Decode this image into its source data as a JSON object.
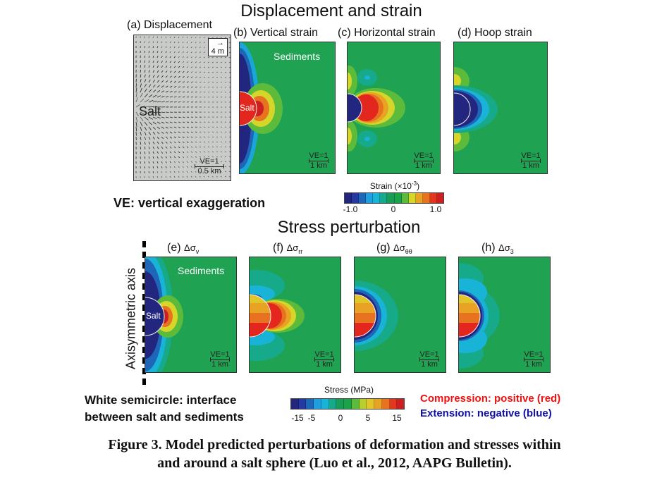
{
  "strain_section": {
    "title": "Displacement and strain",
    "panels": [
      {
        "id": "a",
        "label": "(a) Displacement",
        "region_label": "Salt",
        "arrow_scale": "4 m",
        "ve": "VE=1",
        "scale": "0.5 km"
      },
      {
        "id": "b",
        "label": "(b) Vertical strain",
        "region_label": "Sediments",
        "salt_label": "Salt",
        "ve": "VE=1",
        "scale": "1 km"
      },
      {
        "id": "c",
        "label": "(c) Horizontal strain",
        "ve": "VE=1",
        "scale": "1 km"
      },
      {
        "id": "d",
        "label": "(d) Hoop strain",
        "ve": "VE=1",
        "scale": "1 km"
      }
    ],
    "colorbar": {
      "title": "Strain (×10",
      "title_exp": "-3",
      "title_end": ")",
      "ticks": [
        "-1.0",
        "0",
        "1.0"
      ],
      "colors": [
        "#23267e",
        "#253aa0",
        "#1e66b8",
        "#1f9ee0",
        "#1ab3d8",
        "#16a98a",
        "#179d55",
        "#1ca34a",
        "#5cbb3a",
        "#d6d62a",
        "#e9a324",
        "#e7721f",
        "#e3361e",
        "#cc1f22"
      ]
    },
    "ve_note": "VE: vertical exaggeration"
  },
  "stress_section": {
    "title": "Stress perturbation",
    "axis_label": "Axisymmetric axis",
    "panels": [
      {
        "id": "e",
        "prefix": "(e)",
        "sym": "Δσ",
        "sub": "v",
        "region_label": "Sediments",
        "salt_label": "Salt",
        "ve": "VE=1",
        "scale": "1 km"
      },
      {
        "id": "f",
        "prefix": "(f)",
        "sym": "Δσ",
        "sub": "rr",
        "ve": "VE=1",
        "scale": "1 km"
      },
      {
        "id": "g",
        "prefix": "(g)",
        "sym": "Δσ",
        "sub": "θθ",
        "ve": "VE=1",
        "scale": "1 km"
      },
      {
        "id": "h",
        "prefix": "(h)",
        "sym": "Δσ",
        "sub": "3",
        "ve": "VE=1",
        "scale": "1 km"
      }
    ],
    "colorbar": {
      "title": "Stress (MPa)",
      "ticks": [
        "-15",
        "-5",
        "0",
        "5",
        "15"
      ],
      "colors": [
        "#23267e",
        "#253aa0",
        "#1e66b8",
        "#1f9ee0",
        "#1ab3d8",
        "#16a98a",
        "#179d55",
        "#1ca34a",
        "#5cbb3a",
        "#b8cf2e",
        "#e0c62a",
        "#e9a324",
        "#e7721f",
        "#e3361e",
        "#cc1f22"
      ]
    },
    "interface_note_1": "White semicircle: interface",
    "interface_note_2": "between salt and sediments",
    "compression_note": "Compression: positive (red)",
    "extension_note": "Extension: negative (blue)",
    "compression_color": "#ee1111",
    "extension_color": "#1111aa"
  },
  "caption": {
    "line1": "Figure 3. Model predicted perturbations of deformation and stresses within",
    "line2": "and around a salt sphere (Luo et al., 2012, AAPG Bulletin)."
  }
}
